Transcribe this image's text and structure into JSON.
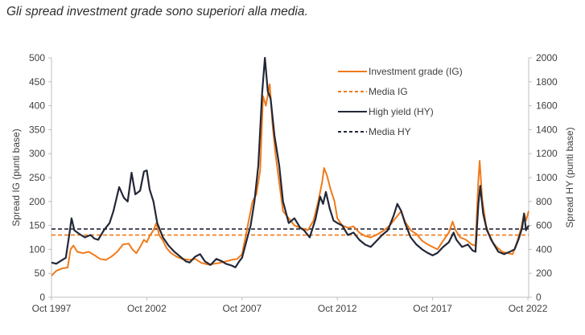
{
  "page": {
    "title": "Gli spread investment grade sono superiori alla media."
  },
  "colors": {
    "ig": "#f07a1a",
    "hy": "#232838",
    "axis": "#bfbfbf",
    "text": "#404040"
  },
  "chart_data": {
    "type": "line",
    "title": "Gli spread investment grade sono superiori alla media.",
    "xlabel": "",
    "ylabel_left": "Spread IG (punti base)",
    "ylabel_right": "Spread HY (punti base)",
    "x_range": [
      1997.75,
      2022.79
    ],
    "ylim_left": [
      0,
      500
    ],
    "ylim_right": [
      0,
      2000
    ],
    "x_ticks": [
      {
        "label": "Oct 1997",
        "value": 1997.75
      },
      {
        "label": "Oct 2002",
        "value": 2002.75
      },
      {
        "label": "Oct 2007",
        "value": 2007.75
      },
      {
        "label": "Oct 2012",
        "value": 2012.75
      },
      {
        "label": "Oct 2017",
        "value": 2017.75
      },
      {
        "label": "Oct 2022",
        "value": 2022.75
      }
    ],
    "y_left_ticks": [
      "0",
      "50",
      "100",
      "150",
      "200",
      "250",
      "300",
      "350",
      "400",
      "450",
      "500"
    ],
    "y_right_ticks": [
      "0",
      "200",
      "400",
      "600",
      "800",
      "1000",
      "1200",
      "1400",
      "1600",
      "1800",
      "2000"
    ],
    "legend_position": "top-right",
    "grid": false,
    "series": [
      {
        "name": "Investment grade (IG)",
        "axis": "left",
        "style": "solid",
        "points": [
          [
            1997.75,
            45
          ],
          [
            1998.0,
            55
          ],
          [
            1998.3,
            60
          ],
          [
            1998.6,
            62
          ],
          [
            1998.75,
            100
          ],
          [
            1998.9,
            108
          ],
          [
            1999.1,
            95
          ],
          [
            1999.4,
            92
          ],
          [
            1999.7,
            95
          ],
          [
            2000.0,
            88
          ],
          [
            2000.3,
            80
          ],
          [
            2000.6,
            78
          ],
          [
            2000.9,
            85
          ],
          [
            2001.2,
            95
          ],
          [
            2001.5,
            110
          ],
          [
            2001.8,
            112
          ],
          [
            2002.0,
            100
          ],
          [
            2002.2,
            92
          ],
          [
            2002.4,
            105
          ],
          [
            2002.6,
            120
          ],
          [
            2002.75,
            115
          ],
          [
            2002.9,
            128
          ],
          [
            2003.1,
            140
          ],
          [
            2003.25,
            155
          ],
          [
            2003.4,
            130
          ],
          [
            2003.6,
            118
          ],
          [
            2003.8,
            102
          ],
          [
            2004.0,
            93
          ],
          [
            2004.3,
            85
          ],
          [
            2004.6,
            80
          ],
          [
            2005.0,
            78
          ],
          [
            2005.3,
            80
          ],
          [
            2005.6,
            72
          ],
          [
            2006.0,
            68
          ],
          [
            2006.3,
            70
          ],
          [
            2006.6,
            72
          ],
          [
            2006.9,
            75
          ],
          [
            2007.2,
            78
          ],
          [
            2007.5,
            80
          ],
          [
            2007.75,
            90
          ],
          [
            2007.95,
            130
          ],
          [
            2008.15,
            170
          ],
          [
            2008.3,
            200
          ],
          [
            2008.5,
            215
          ],
          [
            2008.7,
            265
          ],
          [
            2008.85,
            420
          ],
          [
            2009.0,
            400
          ],
          [
            2009.2,
            445
          ],
          [
            2009.35,
            360
          ],
          [
            2009.5,
            300
          ],
          [
            2009.7,
            240
          ],
          [
            2009.9,
            180
          ],
          [
            2010.2,
            165
          ],
          [
            2010.5,
            150
          ],
          [
            2010.8,
            145
          ],
          [
            2011.2,
            140
          ],
          [
            2011.5,
            160
          ],
          [
            2011.75,
            200
          ],
          [
            2011.95,
            240
          ],
          [
            2012.05,
            270
          ],
          [
            2012.2,
            255
          ],
          [
            2012.4,
            225
          ],
          [
            2012.6,
            200
          ],
          [
            2012.75,
            165
          ],
          [
            2013.0,
            150
          ],
          [
            2013.3,
            145
          ],
          [
            2013.6,
            148
          ],
          [
            2013.9,
            135
          ],
          [
            2014.2,
            128
          ],
          [
            2014.5,
            125
          ],
          [
            2014.8,
            130
          ],
          [
            2015.2,
            140
          ],
          [
            2015.5,
            150
          ],
          [
            2015.8,
            165
          ],
          [
            2016.1,
            180
          ],
          [
            2016.3,
            158
          ],
          [
            2016.6,
            140
          ],
          [
            2016.9,
            132
          ],
          [
            2017.2,
            118
          ],
          [
            2017.5,
            110
          ],
          [
            2017.75,
            105
          ],
          [
            2018.0,
            100
          ],
          [
            2018.3,
            118
          ],
          [
            2018.6,
            135
          ],
          [
            2018.8,
            158
          ],
          [
            2018.95,
            140
          ],
          [
            2019.2,
            125
          ],
          [
            2019.5,
            120
          ],
          [
            2019.8,
            110
          ],
          [
            2020.0,
            108
          ],
          [
            2020.15,
            245
          ],
          [
            2020.22,
            285
          ],
          [
            2020.35,
            205
          ],
          [
            2020.55,
            150
          ],
          [
            2020.8,
            120
          ],
          [
            2021.1,
            105
          ],
          [
            2021.4,
            95
          ],
          [
            2021.7,
            92
          ],
          [
            2021.95,
            90
          ],
          [
            2022.2,
            118
          ],
          [
            2022.4,
            145
          ],
          [
            2022.55,
            175
          ],
          [
            2022.65,
            160
          ],
          [
            2022.79,
            180
          ]
        ]
      },
      {
        "name": "Media IG",
        "axis": "left",
        "style": "dashed",
        "value": 130
      },
      {
        "name": "High yield (HY)",
        "axis": "right",
        "style": "solid",
        "points": [
          [
            1997.75,
            290
          ],
          [
            1998.0,
            280
          ],
          [
            1998.3,
            310
          ],
          [
            1998.5,
            330
          ],
          [
            1998.7,
            540
          ],
          [
            1998.8,
            660
          ],
          [
            1998.95,
            560
          ],
          [
            1999.2,
            530
          ],
          [
            1999.5,
            500
          ],
          [
            1999.8,
            520
          ],
          [
            2000.0,
            490
          ],
          [
            2000.2,
            480
          ],
          [
            2000.5,
            560
          ],
          [
            2000.8,
            620
          ],
          [
            2001.0,
            720
          ],
          [
            2001.3,
            920
          ],
          [
            2001.55,
            830
          ],
          [
            2001.75,
            800
          ],
          [
            2001.95,
            1040
          ],
          [
            2002.15,
            860
          ],
          [
            2002.4,
            890
          ],
          [
            2002.6,
            1050
          ],
          [
            2002.75,
            1060
          ],
          [
            2002.9,
            900
          ],
          [
            2003.1,
            800
          ],
          [
            2003.3,
            620
          ],
          [
            2003.6,
            500
          ],
          [
            2003.9,
            430
          ],
          [
            2004.2,
            380
          ],
          [
            2004.5,
            340
          ],
          [
            2004.8,
            300
          ],
          [
            2005.0,
            290
          ],
          [
            2005.3,
            340
          ],
          [
            2005.55,
            360
          ],
          [
            2005.8,
            300
          ],
          [
            2006.1,
            270
          ],
          [
            2006.4,
            320
          ],
          [
            2006.7,
            300
          ],
          [
            2006.9,
            280
          ],
          [
            2007.2,
            265
          ],
          [
            2007.4,
            250
          ],
          [
            2007.6,
            300
          ],
          [
            2007.75,
            330
          ],
          [
            2008.0,
            480
          ],
          [
            2008.2,
            600
          ],
          [
            2008.4,
            800
          ],
          [
            2008.6,
            1100
          ],
          [
            2008.8,
            1700
          ],
          [
            2008.95,
            2000
          ],
          [
            2009.1,
            1720
          ],
          [
            2009.25,
            1660
          ],
          [
            2009.45,
            1350
          ],
          [
            2009.7,
            1100
          ],
          [
            2009.9,
            800
          ],
          [
            2010.2,
            620
          ],
          [
            2010.5,
            660
          ],
          [
            2010.8,
            580
          ],
          [
            2011.0,
            560
          ],
          [
            2011.3,
            500
          ],
          [
            2011.6,
            650
          ],
          [
            2011.85,
            840
          ],
          [
            2012.0,
            780
          ],
          [
            2012.15,
            880
          ],
          [
            2012.35,
            740
          ],
          [
            2012.55,
            640
          ],
          [
            2012.75,
            620
          ],
          [
            2013.0,
            600
          ],
          [
            2013.3,
            520
          ],
          [
            2013.6,
            540
          ],
          [
            2013.9,
            480
          ],
          [
            2014.2,
            440
          ],
          [
            2014.5,
            420
          ],
          [
            2014.8,
            470
          ],
          [
            2015.1,
            520
          ],
          [
            2015.4,
            560
          ],
          [
            2015.7,
            680
          ],
          [
            2015.9,
            780
          ],
          [
            2016.1,
            720
          ],
          [
            2016.3,
            620
          ],
          [
            2016.6,
            500
          ],
          [
            2016.9,
            440
          ],
          [
            2017.2,
            400
          ],
          [
            2017.5,
            370
          ],
          [
            2017.75,
            350
          ],
          [
            2018.0,
            370
          ],
          [
            2018.3,
            420
          ],
          [
            2018.6,
            460
          ],
          [
            2018.85,
            540
          ],
          [
            2019.0,
            480
          ],
          [
            2019.3,
            420
          ],
          [
            2019.6,
            440
          ],
          [
            2019.85,
            390
          ],
          [
            2020.0,
            380
          ],
          [
            2020.15,
            780
          ],
          [
            2020.25,
            930
          ],
          [
            2020.4,
            700
          ],
          [
            2020.6,
            560
          ],
          [
            2020.9,
            460
          ],
          [
            2021.2,
            380
          ],
          [
            2021.5,
            360
          ],
          [
            2021.8,
            380
          ],
          [
            2022.05,
            400
          ],
          [
            2022.25,
            480
          ],
          [
            2022.45,
            580
          ],
          [
            2022.55,
            700
          ],
          [
            2022.65,
            560
          ],
          [
            2022.79,
            600
          ]
        ]
      },
      {
        "name": "Media HY",
        "axis": "right",
        "style": "dashed",
        "value": 570
      }
    ]
  }
}
